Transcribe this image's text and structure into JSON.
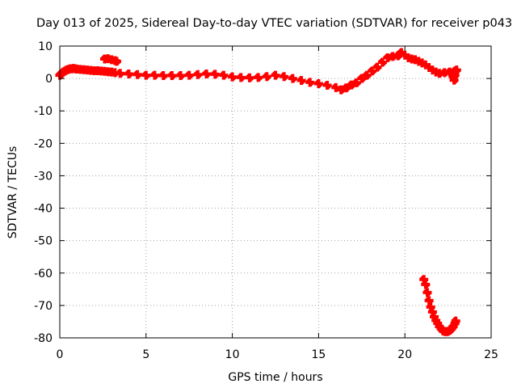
{
  "chart_data": {
    "type": "scatter",
    "title": "Day 013 of 2025, Sidereal Day-to-day VTEC variation (SDTVAR) for receiver p043",
    "xlabel": "GPS time / hours",
    "ylabel": "SDTVAR / TECUs",
    "xlim": [
      0,
      25
    ],
    "ylim": [
      -80,
      10
    ],
    "xticks": [
      0,
      5,
      10,
      15,
      20,
      25
    ],
    "yticks": [
      10,
      0,
      -10,
      -20,
      -30,
      -40,
      -50,
      -60,
      -70,
      -80
    ],
    "grid": true,
    "marker": "+",
    "color": "#ff0000",
    "series": [
      {
        "name": "main-trace",
        "points": [
          [
            0.0,
            1.0
          ],
          [
            0.1,
            1.5
          ],
          [
            0.2,
            2.0
          ],
          [
            0.3,
            2.3
          ],
          [
            0.4,
            2.6
          ],
          [
            0.5,
            2.8
          ],
          [
            0.6,
            3.0
          ],
          [
            0.7,
            3.0
          ],
          [
            0.8,
            3.1
          ],
          [
            0.9,
            3.0
          ],
          [
            1.0,
            2.9
          ],
          [
            1.2,
            2.8
          ],
          [
            1.4,
            2.7
          ],
          [
            1.6,
            2.6
          ],
          [
            1.8,
            2.5
          ],
          [
            2.0,
            2.4
          ],
          [
            2.2,
            2.4
          ],
          [
            2.4,
            2.3
          ],
          [
            2.6,
            2.2
          ],
          [
            2.8,
            2.1
          ],
          [
            3.0,
            2.0
          ],
          [
            3.2,
            1.8
          ],
          [
            3.5,
            1.6
          ],
          [
            4.0,
            1.4
          ],
          [
            4.5,
            1.2
          ],
          [
            5.0,
            1.0
          ],
          [
            5.5,
            1.0
          ],
          [
            6.0,
            0.9
          ],
          [
            6.5,
            0.9
          ],
          [
            7.0,
            0.9
          ],
          [
            7.5,
            1.0
          ],
          [
            8.0,
            1.2
          ],
          [
            8.5,
            1.4
          ],
          [
            9.0,
            1.3
          ],
          [
            9.5,
            1.0
          ],
          [
            10.0,
            0.5
          ],
          [
            10.5,
            0.3
          ],
          [
            11.0,
            0.2
          ],
          [
            11.5,
            0.3
          ],
          [
            12.0,
            0.6
          ],
          [
            12.5,
            1.0
          ],
          [
            13.0,
            0.6
          ],
          [
            13.5,
            0.0
          ],
          [
            14.0,
            -0.6
          ],
          [
            14.5,
            -1.2
          ],
          [
            15.0,
            -1.6
          ],
          [
            15.5,
            -2.1
          ],
          [
            16.0,
            -2.8
          ],
          [
            16.3,
            -3.5
          ],
          [
            16.6,
            -2.9
          ],
          [
            16.9,
            -2.0
          ],
          [
            17.2,
            -1.3
          ],
          [
            17.5,
            0.0
          ],
          [
            17.8,
            1.0
          ],
          [
            18.1,
            2.3
          ],
          [
            18.4,
            3.5
          ],
          [
            18.7,
            5.0
          ],
          [
            19.0,
            6.4
          ],
          [
            19.3,
            6.8
          ],
          [
            19.6,
            7.0
          ],
          [
            19.8,
            8.0
          ],
          [
            20.0,
            7.2
          ],
          [
            20.2,
            6.4
          ],
          [
            20.4,
            6.0
          ],
          [
            20.6,
            5.8
          ],
          [
            20.8,
            5.3
          ],
          [
            21.0,
            4.8
          ],
          [
            21.2,
            4.2
          ],
          [
            21.4,
            3.4
          ],
          [
            21.6,
            2.6
          ],
          [
            21.8,
            2.0
          ],
          [
            22.0,
            1.6
          ],
          [
            22.3,
            1.8
          ],
          [
            22.6,
            2.0
          ],
          [
            22.9,
            2.3
          ],
          [
            23.0,
            2.6
          ]
        ]
      },
      {
        "name": "hump-near-3h",
        "points": [
          [
            2.6,
            6.0
          ],
          [
            2.8,
            6.1
          ],
          [
            3.0,
            5.8
          ],
          [
            3.2,
            5.5
          ],
          [
            3.3,
            5.3
          ]
        ]
      },
      {
        "name": "dip-near-23h",
        "points": [
          [
            22.8,
            0.5
          ],
          [
            22.85,
            -0.5
          ],
          [
            22.9,
            1.0
          ]
        ]
      },
      {
        "name": "outlier-branch",
        "points": [
          [
            21.1,
            -62.0
          ],
          [
            21.2,
            -63.5
          ],
          [
            21.3,
            -66.0
          ],
          [
            21.4,
            -68.5
          ],
          [
            21.5,
            -70.5
          ],
          [
            21.6,
            -72.0
          ],
          [
            21.7,
            -73.5
          ],
          [
            21.8,
            -74.6
          ],
          [
            21.9,
            -75.5
          ],
          [
            22.0,
            -76.5
          ],
          [
            22.1,
            -77.2
          ],
          [
            22.2,
            -77.8
          ],
          [
            22.3,
            -78.0
          ],
          [
            22.4,
            -78.1
          ],
          [
            22.5,
            -78.0
          ],
          [
            22.6,
            -77.7
          ],
          [
            22.7,
            -77.2
          ],
          [
            22.8,
            -76.5
          ],
          [
            22.9,
            -75.5
          ],
          [
            22.95,
            -74.8
          ]
        ]
      }
    ]
  }
}
